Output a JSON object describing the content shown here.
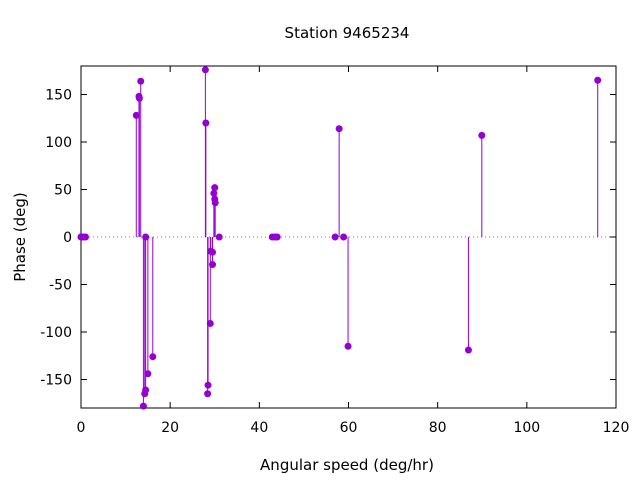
{
  "chart_data": {
    "type": "scatter",
    "style": "impulses-with-points",
    "title": "Station 9465234",
    "xlabel": "Angular speed (deg/hr)",
    "ylabel": "Phase (deg)",
    "xlim": [
      0,
      120
    ],
    "ylim": [
      -180,
      180
    ],
    "xticks": [
      0,
      20,
      40,
      60,
      80,
      100,
      120
    ],
    "yticks": [
      -150,
      -100,
      -50,
      0,
      50,
      100,
      150
    ],
    "zero_line": true,
    "grid": false,
    "legend": "none",
    "color": "#9400d3",
    "points": [
      {
        "x": 0.0,
        "y": 0
      },
      {
        "x": 0.04,
        "y": 0
      },
      {
        "x": 0.08,
        "y": 0
      },
      {
        "x": 0.5,
        "y": 0
      },
      {
        "x": 1.0,
        "y": 0
      },
      {
        "x": 12.4,
        "y": 128
      },
      {
        "x": 13.0,
        "y": 148
      },
      {
        "x": 13.1,
        "y": 146
      },
      {
        "x": 13.4,
        "y": 164
      },
      {
        "x": 14.0,
        "y": -178
      },
      {
        "x": 14.3,
        "y": -165
      },
      {
        "x": 14.5,
        "y": -161
      },
      {
        "x": 14.5,
        "y": 0
      },
      {
        "x": 15.0,
        "y": -144
      },
      {
        "x": 16.1,
        "y": -126
      },
      {
        "x": 27.9,
        "y": 176
      },
      {
        "x": 28.0,
        "y": 120
      },
      {
        "x": 28.4,
        "y": -165
      },
      {
        "x": 28.5,
        "y": -156
      },
      {
        "x": 29.0,
        "y": -91
      },
      {
        "x": 29.1,
        "y": -15
      },
      {
        "x": 29.5,
        "y": -16
      },
      {
        "x": 29.5,
        "y": -29
      },
      {
        "x": 29.8,
        "y": 46
      },
      {
        "x": 30.0,
        "y": 52
      },
      {
        "x": 30.0,
        "y": 40
      },
      {
        "x": 30.1,
        "y": 36
      },
      {
        "x": 31.0,
        "y": 0
      },
      {
        "x": 42.9,
        "y": 0
      },
      {
        "x": 43.5,
        "y": 0
      },
      {
        "x": 44.0,
        "y": 0
      },
      {
        "x": 57.0,
        "y": 0
      },
      {
        "x": 57.9,
        "y": 114
      },
      {
        "x": 58.9,
        "y": 0
      },
      {
        "x": 59.9,
        "y": -115
      },
      {
        "x": 86.9,
        "y": -119
      },
      {
        "x": 89.9,
        "y": 107
      },
      {
        "x": 115.9,
        "y": 165
      }
    ]
  }
}
